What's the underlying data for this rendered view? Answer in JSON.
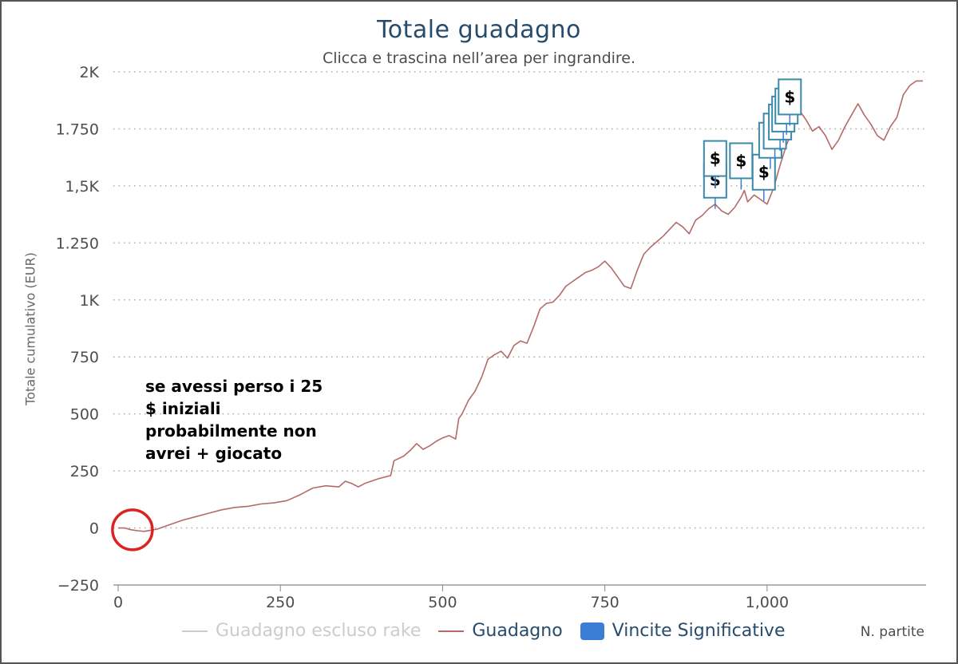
{
  "chart_data": {
    "type": "line",
    "title": "Totale guadagno",
    "subtitle": "Clicca e trascina nell’area per ingrandire.",
    "ylabel": "Totale cumulativo (EUR)",
    "xlabel": "N. partite",
    "xlim": [
      0,
      1245
    ],
    "ylim": [
      -250,
      2000
    ],
    "x_ticks": [
      0,
      250,
      500,
      750,
      1000
    ],
    "x_tick_labels": [
      "0",
      "250",
      "500",
      "750",
      "1,000"
    ],
    "y_ticks": [
      -250,
      0,
      250,
      500,
      750,
      1000,
      1250,
      1500,
      1750,
      2000
    ],
    "y_tick_labels": [
      "−250",
      "0",
      "250",
      "500",
      "750",
      "1K",
      "1.250",
      "1,5K",
      "1.750",
      "2K"
    ],
    "grid": true,
    "legend_position": "bottom",
    "legend": [
      {
        "name": "Guadagno escluso rake",
        "color": "#cccccc",
        "kind": "line"
      },
      {
        "name": "Guadagno",
        "color": "#b56a6a",
        "kind": "line"
      },
      {
        "name": "Vincite Significative",
        "color": "#3a7fd5",
        "kind": "box"
      }
    ],
    "series": [
      {
        "name": "Guadagno",
        "color": "#b56a6a",
        "points": [
          [
            0,
            0
          ],
          [
            10,
            0
          ],
          [
            20,
            -8
          ],
          [
            30,
            -12
          ],
          [
            40,
            -15
          ],
          [
            50,
            -10
          ],
          [
            60,
            -5
          ],
          [
            70,
            5
          ],
          [
            80,
            15
          ],
          [
            100,
            35
          ],
          [
            120,
            50
          ],
          [
            140,
            65
          ],
          [
            160,
            80
          ],
          [
            180,
            90
          ],
          [
            200,
            95
          ],
          [
            220,
            105
          ],
          [
            240,
            110
          ],
          [
            260,
            120
          ],
          [
            280,
            145
          ],
          [
            300,
            175
          ],
          [
            320,
            185
          ],
          [
            340,
            180
          ],
          [
            350,
            205
          ],
          [
            360,
            195
          ],
          [
            370,
            180
          ],
          [
            380,
            195
          ],
          [
            400,
            215
          ],
          [
            420,
            230
          ],
          [
            425,
            295
          ],
          [
            440,
            315
          ],
          [
            450,
            340
          ],
          [
            460,
            370
          ],
          [
            470,
            345
          ],
          [
            480,
            360
          ],
          [
            490,
            380
          ],
          [
            500,
            395
          ],
          [
            510,
            405
          ],
          [
            520,
            390
          ],
          [
            525,
            480
          ],
          [
            530,
            500
          ],
          [
            540,
            560
          ],
          [
            550,
            600
          ],
          [
            560,
            660
          ],
          [
            570,
            740
          ],
          [
            580,
            760
          ],
          [
            590,
            775
          ],
          [
            600,
            745
          ],
          [
            610,
            800
          ],
          [
            620,
            820
          ],
          [
            630,
            810
          ],
          [
            640,
            880
          ],
          [
            650,
            960
          ],
          [
            660,
            985
          ],
          [
            670,
            990
          ],
          [
            680,
            1020
          ],
          [
            690,
            1060
          ],
          [
            700,
            1080
          ],
          [
            710,
            1100
          ],
          [
            720,
            1120
          ],
          [
            730,
            1130
          ],
          [
            740,
            1145
          ],
          [
            750,
            1170
          ],
          [
            760,
            1140
          ],
          [
            770,
            1100
          ],
          [
            780,
            1060
          ],
          [
            790,
            1050
          ],
          [
            800,
            1130
          ],
          [
            810,
            1200
          ],
          [
            820,
            1230
          ],
          [
            830,
            1255
          ],
          [
            840,
            1280
          ],
          [
            850,
            1310
          ],
          [
            860,
            1340
          ],
          [
            870,
            1320
          ],
          [
            880,
            1290
          ],
          [
            890,
            1350
          ],
          [
            900,
            1370
          ],
          [
            910,
            1400
          ],
          [
            920,
            1420
          ],
          [
            930,
            1390
          ],
          [
            940,
            1375
          ],
          [
            950,
            1405
          ],
          [
            960,
            1450
          ],
          [
            965,
            1480
          ],
          [
            970,
            1430
          ],
          [
            980,
            1460
          ],
          [
            990,
            1440
          ],
          [
            1000,
            1420
          ],
          [
            1010,
            1490
          ],
          [
            1015,
            1540
          ],
          [
            1020,
            1590
          ],
          [
            1030,
            1680
          ],
          [
            1040,
            1750
          ],
          [
            1050,
            1830
          ],
          [
            1060,
            1790
          ],
          [
            1070,
            1740
          ],
          [
            1080,
            1760
          ],
          [
            1090,
            1720
          ],
          [
            1100,
            1660
          ],
          [
            1110,
            1700
          ],
          [
            1120,
            1760
          ],
          [
            1130,
            1810
          ],
          [
            1140,
            1860
          ],
          [
            1150,
            1810
          ],
          [
            1160,
            1770
          ],
          [
            1170,
            1720
          ],
          [
            1180,
            1700
          ],
          [
            1190,
            1760
          ],
          [
            1200,
            1800
          ],
          [
            1210,
            1900
          ],
          [
            1220,
            1940
          ],
          [
            1230,
            1960
          ],
          [
            1240,
            1960
          ]
        ]
      }
    ],
    "markers": [
      {
        "x": 920,
        "y": 1525,
        "label": "$"
      },
      {
        "x": 920,
        "y": 1620,
        "label": "$"
      },
      {
        "x": 960,
        "y": 1610,
        "label": "$"
      },
      {
        "x": 995,
        "y": 1560,
        "label": "$"
      },
      {
        "x": 1005,
        "y": 1700,
        "label": "$"
      },
      {
        "x": 1012,
        "y": 1740,
        "label": "$"
      },
      {
        "x": 1020,
        "y": 1780,
        "label": "$"
      },
      {
        "x": 1025,
        "y": 1815,
        "label": "$"
      },
      {
        "x": 1030,
        "y": 1850,
        "label": "$"
      },
      {
        "x": 1035,
        "y": 1890,
        "label": "$"
      }
    ]
  },
  "annotation": {
    "text": "se avessi perso i 25 $ iniziali probabilmente non avrei + giocato",
    "circle_color": "#dd2222"
  }
}
